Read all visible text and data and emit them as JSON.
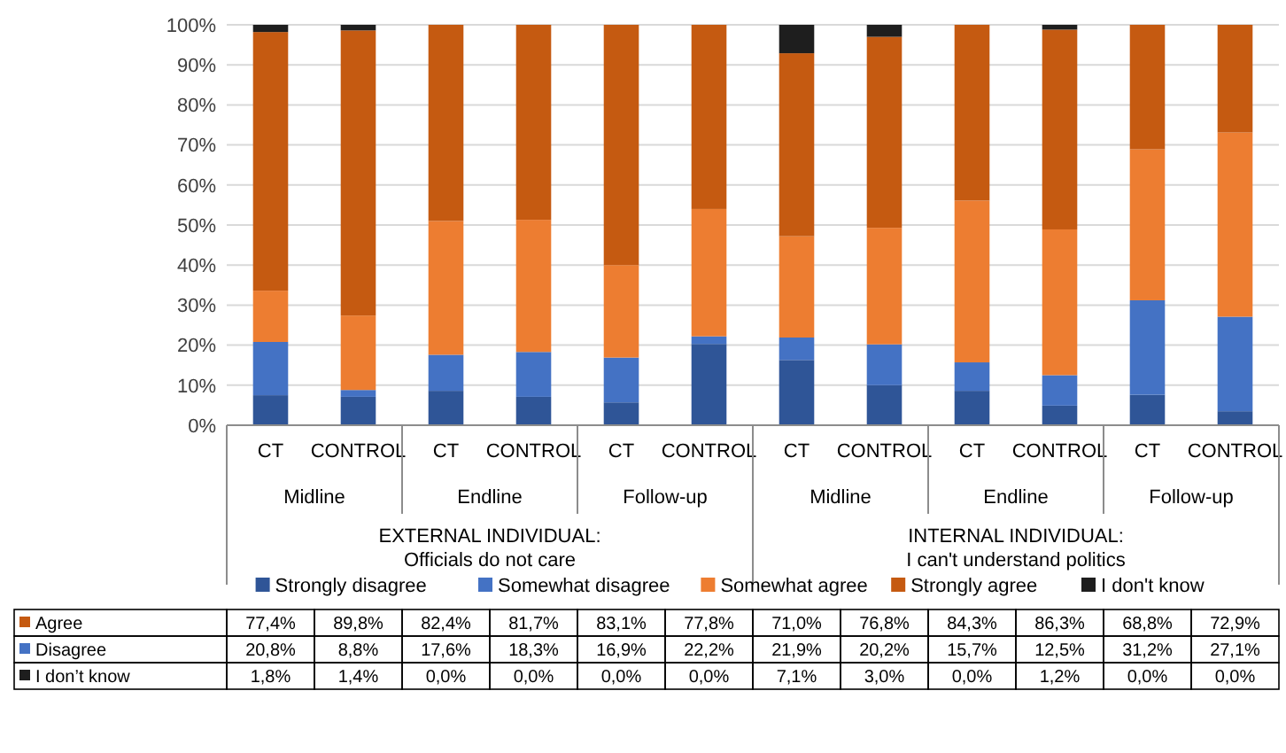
{
  "chart_data": {
    "type": "bar",
    "stacked": true,
    "categories": [
      "CT",
      "CONTROL",
      "CT",
      "CONTROL",
      "CT",
      "CONTROL",
      "CT",
      "CONTROL",
      "CT",
      "CONTROL",
      "CT",
      "CONTROL"
    ],
    "series": [
      {
        "name": "Strongly disagree",
        "color": "#2f5597",
        "values": [
          7.5,
          7.1,
          8.6,
          7.1,
          5.7,
          20.3,
          16.3,
          10.0,
          8.6,
          4.9,
          7.6,
          3.5
        ]
      },
      {
        "name": "Somewhat disagree",
        "color": "#4472c4",
        "values": [
          13.3,
          1.7,
          9.0,
          11.2,
          11.2,
          1.9,
          5.6,
          10.2,
          7.1,
          7.6,
          23.6,
          23.6
        ]
      },
      {
        "name": "Somewhat agree",
        "color": "#ed7d31",
        "values": [
          12.8,
          18.6,
          33.4,
          33.0,
          23.1,
          31.8,
          25.3,
          29.1,
          40.4,
          36.4,
          37.7,
          46.0
        ]
      },
      {
        "name": "Strongly agree",
        "color": "#c55a11",
        "values": [
          64.6,
          71.2,
          49.0,
          48.7,
          60.0,
          46.0,
          45.7,
          47.7,
          43.9,
          49.9,
          31.1,
          26.9
        ]
      },
      {
        "name": "I don't know",
        "color": "#1e1e1e",
        "values": [
          1.8,
          1.4,
          0,
          0,
          0,
          0,
          7.1,
          3.0,
          0,
          1.2,
          0,
          0
        ]
      }
    ],
    "ylim": [
      0,
      100
    ],
    "yticks": [
      {
        "value": 0,
        "label": "0%"
      },
      {
        "value": 10,
        "label": "10%"
      },
      {
        "value": 20,
        "label": "20%"
      },
      {
        "value": 30,
        "label": "30%"
      },
      {
        "value": 40,
        "label": "40%"
      },
      {
        "value": 50,
        "label": "50%"
      },
      {
        "value": 60,
        "label": "60%"
      },
      {
        "value": 70,
        "label": "70%"
      },
      {
        "value": 80,
        "label": "80%"
      },
      {
        "value": 90,
        "label": "90%"
      },
      {
        "value": 100,
        "label": "100%"
      }
    ],
    "grid": "y",
    "legend": "bottom",
    "annotations": [
      "Midline",
      "Endline",
      "Follow-up",
      "Midline",
      "Endline",
      "Follow-up",
      "EXTERNAL INDIVIDUAL:\nOfficials do not care",
      "INTERNAL INDIVIDUAL:\nI can't understand politics",
      "Agree",
      "77,4%",
      "89,8%",
      "82,4%",
      "81,7%",
      "83,1%",
      "77,8%",
      "71,0%",
      "76,8%",
      "84,3%",
      "86,3%",
      "68,8%",
      "72,9%",
      "Disagree",
      "20,8%",
      "8,8%",
      "17,6%",
      "18,3%",
      "16,9%",
      "22,2%",
      "21,9%",
      "20,2%",
      "15,7%",
      "12,5%",
      "31,2%",
      "27,1%",
      "I don’t know",
      "1,8%",
      "1,4%",
      "0,0%",
      "0,0%",
      "0,0%",
      "0,0%",
      "7,1%",
      "3,0%",
      "0,0%",
      "1,2%",
      "0,0%",
      "0,0%"
    ]
  }
}
